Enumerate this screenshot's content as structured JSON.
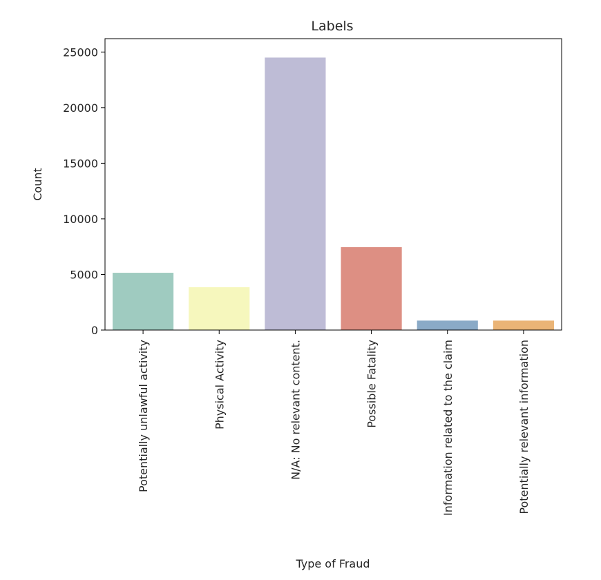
{
  "chart_data": {
    "type": "bar",
    "title": "Labels",
    "xlabel": "Type of Fraud",
    "ylabel": "Count",
    "categories": [
      "Potentially unlawful activity",
      "Physical Activity",
      "N/A: No relevant content.",
      "Possible Fatality",
      "Information related to the claim",
      "Potentially relevant information"
    ],
    "values": [
      5150,
      3850,
      24500,
      7450,
      850,
      850
    ],
    "colors": [
      "#9fcbc0",
      "#f6f7bd",
      "#bebcd6",
      "#dd8f83",
      "#8aaac7",
      "#eab476"
    ],
    "ylim": [
      0,
      26200
    ],
    "yticks": [
      0,
      5000,
      10000,
      15000,
      20000,
      25000
    ],
    "ytick_labels": [
      "0",
      "5000",
      "10000",
      "15000",
      "20000",
      "25000"
    ],
    "grid": false,
    "legend": "none"
  }
}
